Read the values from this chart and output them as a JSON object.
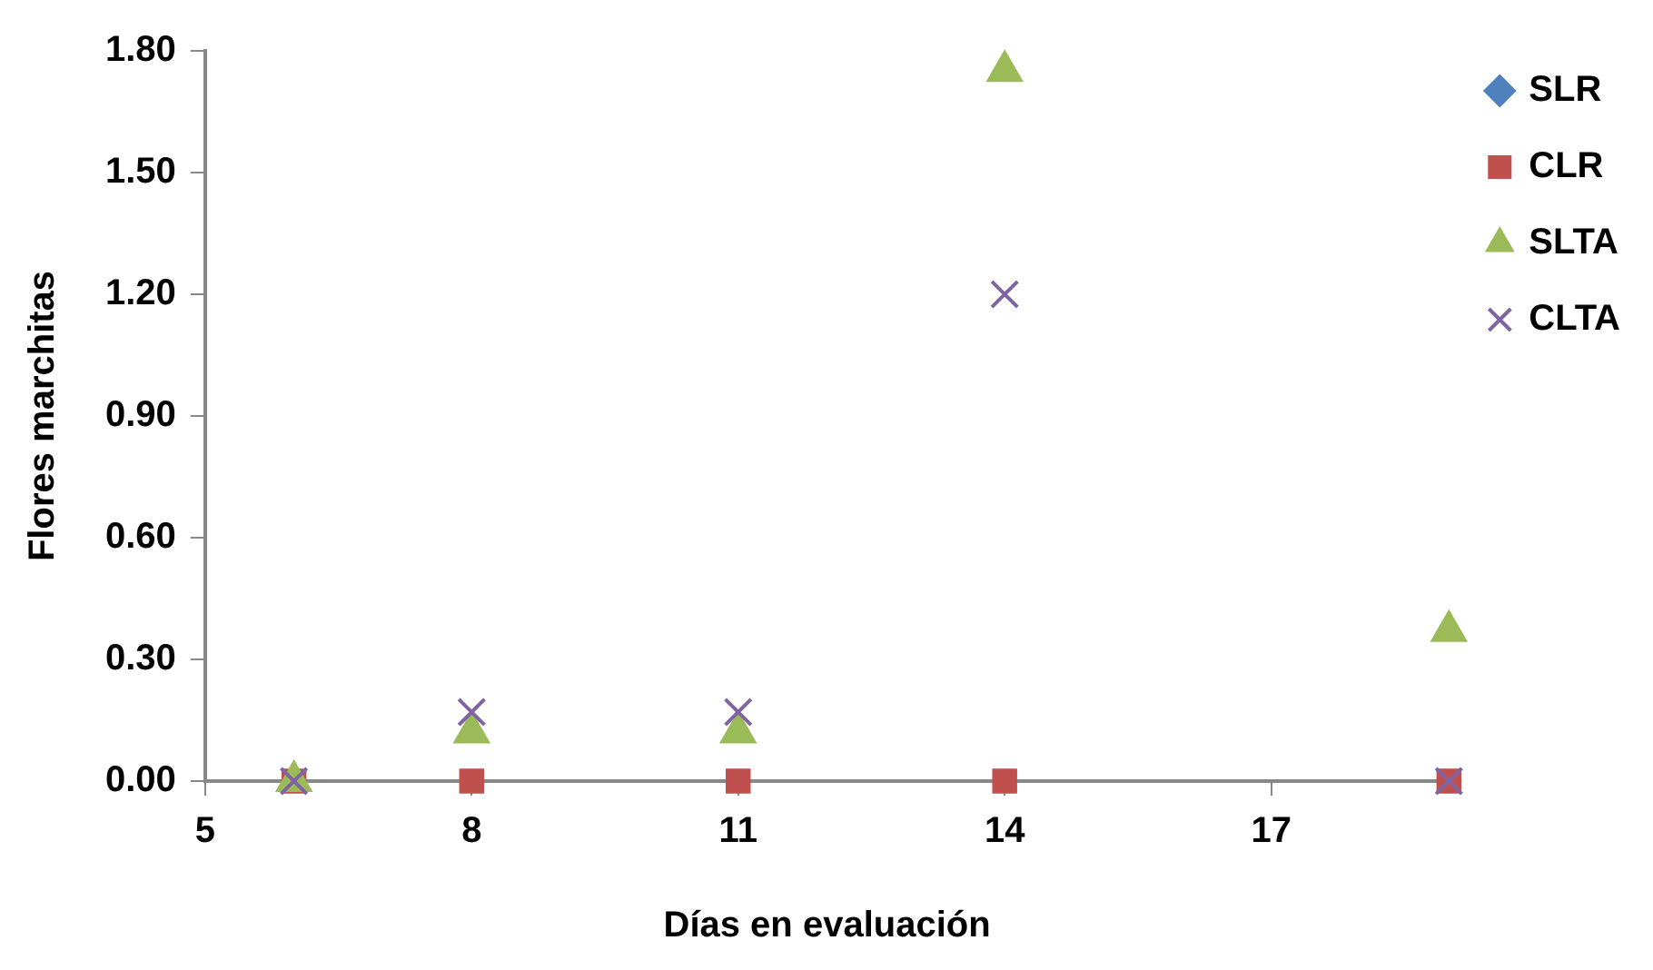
{
  "chart_data": {
    "type": "scatter",
    "xlabel": "Días en evaluación",
    "ylabel": "Flores marchitas",
    "x": [
      6,
      8,
      11,
      14,
      19
    ],
    "series": [
      {
        "name": "SLR",
        "color": "#4f81bd",
        "marker": "diamond",
        "values": [
          null,
          null,
          null,
          null,
          null
        ]
      },
      {
        "name": "CLR",
        "color": "#c0504d",
        "marker": "square",
        "values": [
          0,
          0,
          0,
          0,
          0
        ]
      },
      {
        "name": "SLTA",
        "color": "#9bbb59",
        "marker": "triangle",
        "values": [
          0,
          0.12,
          0.12,
          1.75,
          0.37
        ]
      },
      {
        "name": "CLTA",
        "color": "#8064a2",
        "marker": "cross",
        "values": [
          0,
          0.17,
          0.17,
          1.2,
          0
        ]
      }
    ],
    "xlim": [
      5,
      19
    ],
    "xticks": [
      5,
      8,
      11,
      14,
      17
    ],
    "ylim": [
      0,
      1.8
    ],
    "yticks": [
      {
        "value": 0,
        "label": "0.00"
      },
      {
        "value": 0.3,
        "label": "0.30"
      },
      {
        "value": 0.6,
        "label": "0.60"
      },
      {
        "value": 0.9,
        "label": "0.90"
      },
      {
        "value": 1.2,
        "label": "1.20"
      },
      {
        "value": 1.5,
        "label": "1.50"
      },
      {
        "value": 1.8,
        "label": "1.80"
      }
    ],
    "grid": false,
    "legend": "top right"
  }
}
